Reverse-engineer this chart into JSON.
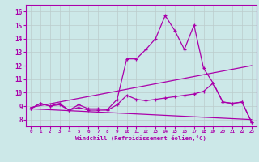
{
  "xlabel": "Windchill (Refroidissement éolien,°C)",
  "xlim": [
    -0.5,
    23.5
  ],
  "ylim": [
    7.5,
    16.5
  ],
  "xticks": [
    0,
    1,
    2,
    3,
    4,
    5,
    6,
    7,
    8,
    9,
    10,
    11,
    12,
    13,
    14,
    15,
    16,
    17,
    18,
    19,
    20,
    21,
    22,
    23
  ],
  "yticks": [
    8,
    9,
    10,
    11,
    12,
    13,
    14,
    15,
    16
  ],
  "bg_color": "#cce8e8",
  "line_color": "#aa00aa",
  "grid_color": "#bbcccc",
  "line1_x": [
    0,
    1,
    2,
    3,
    4,
    5,
    6,
    7,
    8,
    9,
    10,
    11,
    12,
    13,
    14,
    15,
    16,
    17,
    18,
    19,
    20,
    21,
    22,
    23
  ],
  "line1_y": [
    8.8,
    9.2,
    9.0,
    9.2,
    8.7,
    9.1,
    8.8,
    8.8,
    8.75,
    9.5,
    12.5,
    12.5,
    13.2,
    14.0,
    15.7,
    14.6,
    13.2,
    15.0,
    11.8,
    10.7,
    9.3,
    9.2,
    9.3,
    7.8
  ],
  "line2_x": [
    0,
    1,
    2,
    3,
    4,
    5,
    6,
    7,
    8,
    9,
    10,
    11,
    12,
    13,
    14,
    15,
    16,
    17,
    18,
    19,
    20,
    21,
    22,
    23
  ],
  "line2_y": [
    8.8,
    9.2,
    9.0,
    9.1,
    8.7,
    8.9,
    8.7,
    8.7,
    8.7,
    9.1,
    9.8,
    9.5,
    9.4,
    9.5,
    9.6,
    9.7,
    9.8,
    9.9,
    10.1,
    10.7,
    9.3,
    9.2,
    9.3,
    7.8
  ],
  "line3_x": [
    0,
    23
  ],
  "line3_y": [
    8.8,
    8.0
  ],
  "line4_x": [
    0,
    23
  ],
  "line4_y": [
    8.9,
    12.0
  ]
}
